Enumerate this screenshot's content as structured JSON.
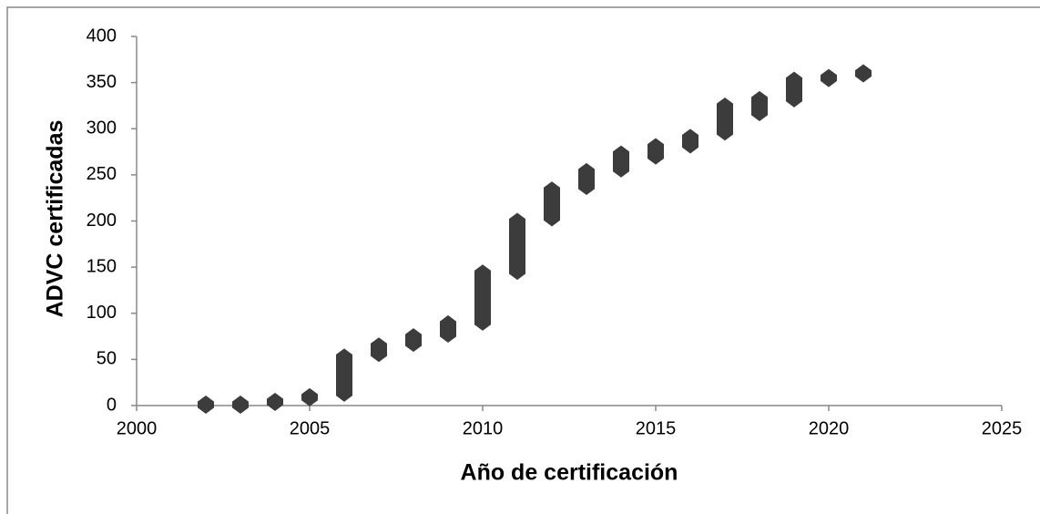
{
  "chart_data": {
    "type": "scatter",
    "xlabel": "Año de certificación",
    "ylabel": "ADVC  certificadas",
    "color": "#3c3c3c",
    "x": [
      2002,
      2003,
      2004,
      2005,
      2006,
      2006,
      2006,
      2006,
      2006,
      2006,
      2006,
      2006,
      2006,
      2006,
      2006,
      2007,
      2007,
      2007,
      2008,
      2008,
      2008,
      2009,
      2009,
      2009,
      2009,
      2010,
      2010,
      2010,
      2010,
      2010,
      2010,
      2010,
      2010,
      2010,
      2010,
      2010,
      2010,
      2010,
      2010,
      2011,
      2011,
      2011,
      2011,
      2011,
      2011,
      2011,
      2011,
      2011,
      2011,
      2011,
      2011,
      2011,
      2011,
      2012,
      2012,
      2012,
      2012,
      2012,
      2012,
      2012,
      2012,
      2013,
      2013,
      2013,
      2013,
      2013,
      2014,
      2014,
      2014,
      2014,
      2014,
      2015,
      2015,
      2015,
      2016,
      2016,
      2016,
      2017,
      2017,
      2017,
      2017,
      2017,
      2017,
      2017,
      2017,
      2018,
      2018,
      2018,
      2018,
      2019,
      2019,
      2019,
      2019,
      2019,
      2019,
      2020,
      2021
    ],
    "values": [
      1,
      1,
      4,
      9,
      14,
      18,
      22,
      26,
      30,
      34,
      38,
      42,
      46,
      50,
      52,
      57,
      61,
      64,
      68,
      71,
      74,
      78,
      82,
      86,
      88,
      91,
      95,
      99,
      103,
      107,
      111,
      115,
      119,
      123,
      127,
      131,
      135,
      139,
      143,
      146,
      150,
      154,
      158,
      162,
      166,
      170,
      174,
      178,
      182,
      186,
      190,
      194,
      199,
      204,
      208,
      212,
      216,
      220,
      224,
      228,
      233,
      238,
      242,
      246,
      250,
      253,
      257,
      261,
      265,
      269,
      272,
      271,
      275,
      280,
      283,
      287,
      290,
      297,
      301,
      305,
      309,
      313,
      317,
      321,
      324,
      318,
      322,
      326,
      331,
      333,
      337,
      341,
      345,
      349,
      352,
      355,
      360
    ],
    "xlim": [
      2000,
      2025
    ],
    "xticks": [
      2000,
      2005,
      2010,
      2015,
      2020,
      2025
    ],
    "ylim": [
      0,
      400
    ],
    "yticks": [
      0,
      50,
      100,
      150,
      200,
      250,
      300,
      350,
      400
    ]
  }
}
